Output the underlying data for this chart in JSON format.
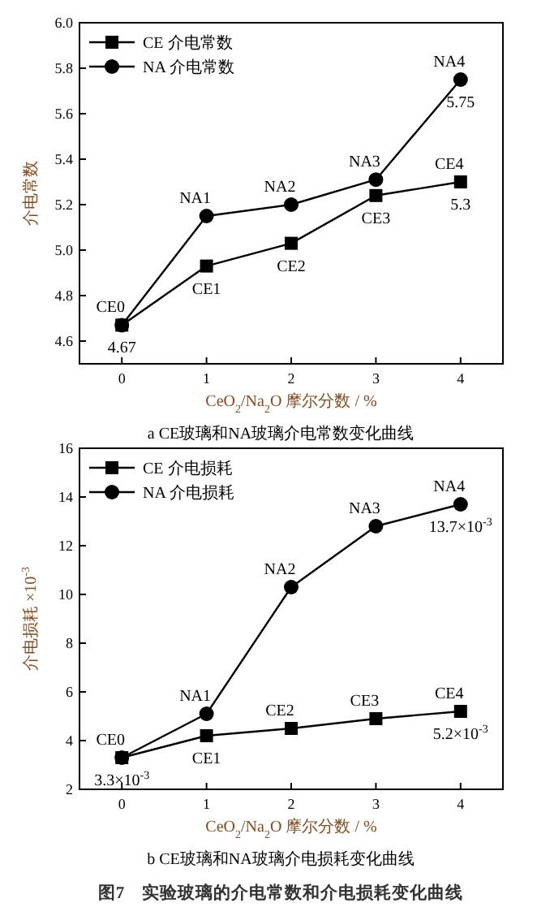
{
  "chart_data": [
    {
      "type": "line",
      "xlabel": "CeO$_{2}$/Na$_{2}$O 摩尔分数 / %",
      "ylabel": "介电常数",
      "x": [
        0,
        1,
        2,
        3,
        4
      ],
      "xlim": [
        -0.5,
        4.5
      ],
      "xticks": [
        0,
        1,
        2,
        3,
        4
      ],
      "ylim": [
        4.5,
        6.0
      ],
      "yticks": [
        {
          "value": 4.6,
          "label": "4.6"
        },
        {
          "value": 4.8,
          "label": "4.8"
        },
        {
          "value": 5.0,
          "label": "5.0"
        },
        {
          "value": 5.2,
          "label": "5.2"
        },
        {
          "value": 5.4,
          "label": "5.4"
        },
        {
          "value": 5.6,
          "label": "5.6"
        },
        {
          "value": 5.8,
          "label": "5.8"
        },
        {
          "value": 6.0,
          "label": "6.0"
        }
      ],
      "legend": "top left",
      "grid": false,
      "line_style": "solid",
      "series": [
        {
          "name": "CE 介电常数",
          "color": "#000000",
          "marker": "square",
          "values": [
            4.67,
            4.93,
            5.03,
            5.24,
            5.3
          ]
        },
        {
          "name": "NA 介电常数",
          "color": "#000000",
          "marker": "circle",
          "values": [
            4.67,
            5.15,
            5.2,
            5.31,
            5.75
          ]
        }
      ],
      "annotations": [
        {
          "text": "CE0",
          "x": 0,
          "y": 4.67
        },
        {
          "text": "4.67",
          "x": 0,
          "y": 4.67
        },
        {
          "text": "CE1",
          "x": 1,
          "y": 4.93
        },
        {
          "text": "CE2",
          "x": 2,
          "y": 5.03
        },
        {
          "text": "CE3",
          "x": 3,
          "y": 5.24
        },
        {
          "text": "CE4",
          "x": 4,
          "y": 5.3
        },
        {
          "text": "5.3",
          "x": 4,
          "y": 5.3
        },
        {
          "text": "NA1",
          "x": 1,
          "y": 5.15
        },
        {
          "text": "NA2",
          "x": 2,
          "y": 5.2
        },
        {
          "text": "NA3",
          "x": 3,
          "y": 5.31
        },
        {
          "text": "NA4",
          "x": 4,
          "y": 5.75
        },
        {
          "text": "5.75",
          "x": 4,
          "y": 5.75
        },
        "a CE玻璃和NA玻璃介电常数变化曲线"
      ]
    },
    {
      "type": "line",
      "xlabel": "CeO$_{2}$/Na$_{2}$O 摩尔分数 / %",
      "ylabel": "介电损耗 ×10$^{-3}$",
      "x": [
        0,
        1,
        2,
        3,
        4
      ],
      "xlim": [
        -0.5,
        4.5
      ],
      "xticks": [
        0,
        1,
        2,
        3,
        4
      ],
      "ylim": [
        2,
        16
      ],
      "yticks": [
        2,
        4,
        6,
        8,
        10,
        12,
        14,
        16
      ],
      "legend": "top left",
      "grid": false,
      "line_style": "solid",
      "series": [
        {
          "name": "CE 介电损耗",
          "color": "#000000",
          "marker": "square",
          "values": [
            3.3,
            4.2,
            4.5,
            4.9,
            5.2
          ]
        },
        {
          "name": "NA 介电损耗",
          "color": "#000000",
          "marker": "circle",
          "values": [
            3.3,
            5.1,
            10.3,
            12.8,
            13.7
          ]
        }
      ],
      "annotations": [
        {
          "text": "CE0",
          "x": 0,
          "y": 3.3
        },
        {
          "text": "3.3×10$^{-3}$",
          "x": 0,
          "y": 3.3
        },
        {
          "text": "CE1",
          "x": 1,
          "y": 4.2
        },
        {
          "text": "CE2",
          "x": 2,
          "y": 4.5
        },
        {
          "text": "CE3",
          "x": 3,
          "y": 4.9
        },
        {
          "text": "CE4",
          "x": 4,
          "y": 5.2
        },
        {
          "text": "5.2×10$^{-3}$",
          "x": 4,
          "y": 5.2
        },
        {
          "text": "NA1",
          "x": 1,
          "y": 5.1
        },
        {
          "text": "NA2",
          "x": 2,
          "y": 10.3
        },
        {
          "text": "NA3",
          "x": 3,
          "y": 12.8
        },
        {
          "text": "NA4",
          "x": 4,
          "y": 13.7
        },
        {
          "text": "13.7×10$^{-3}$",
          "x": 4,
          "y": 13.7
        },
        "b CE玻璃和NA玻璃介电损耗变化曲线",
        "图7　实验玻璃的介电常数和介电损耗变化曲线"
      ]
    }
  ]
}
